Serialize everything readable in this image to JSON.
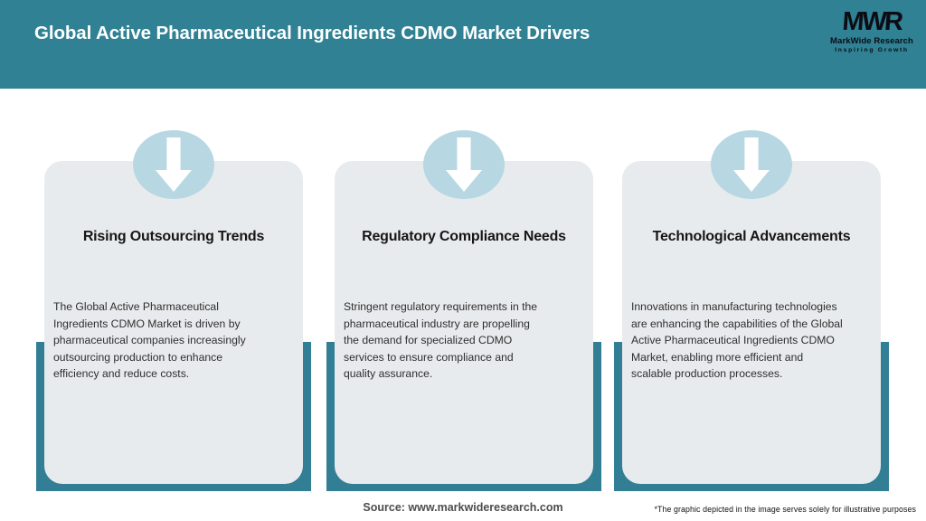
{
  "header": {
    "title": "Global Active Pharmaceutical Ingredients CDMO Market Drivers",
    "logo": {
      "mark": "MWR",
      "name": "MarkWide Research",
      "tagline": "Inspiring Growth"
    }
  },
  "cards": [
    {
      "title": "Rising Outsourcing Trends",
      "body": "The Global Active Pharmaceutical\nIngredients CDMO Market is driven by\npharmaceutical companies increasingly\noutsourcing production to enhance\nefficiency and reduce costs."
    },
    {
      "title": "Regulatory Compliance Needs",
      "body": "Stringent regulatory requirements in the\npharmaceutical industry are propelling\nthe demand for specialized CDMO\nservices to ensure compliance and\nquality assurance."
    },
    {
      "title": "Technological Advancements",
      "body": "Innovations in manufacturing technologies\nare enhancing the capabilities of the Global\nActive Pharmaceutical Ingredients CDMO\nMarket, enabling more efficient and\nscalable production processes."
    }
  ],
  "footer": {
    "source": "Source: www.markwideresearch.com",
    "disclaimer": "*The graphic depicted in the image serves solely for illustrative purposes"
  },
  "colors": {
    "header_teal": "#2f8193",
    "band_teal": "#317e95",
    "card_gray": "#e8ebed",
    "circle_blue": "#b7d7e3",
    "title_ink": "#161616",
    "body_ink": "#2e2e2e",
    "source_ink": "#4d4d4d",
    "arrow_white": "#ffffff"
  }
}
